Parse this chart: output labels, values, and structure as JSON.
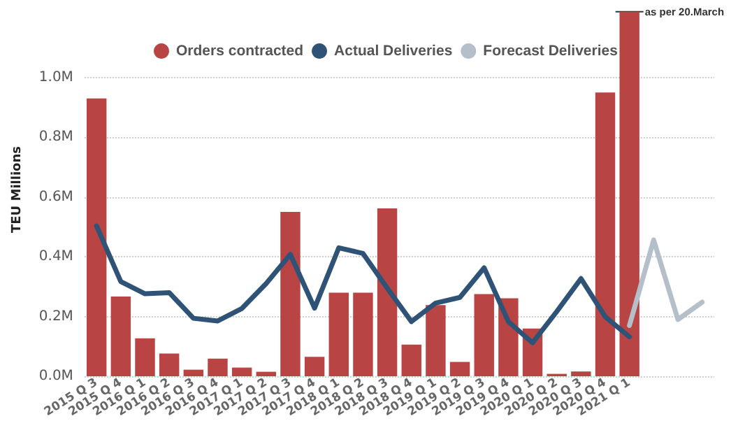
{
  "chart_data": {
    "type": "bar",
    "ylabel": "TEU Millions",
    "categories": [
      "2015 Q 3",
      "2015 Q 4",
      "2016 Q 1",
      "2016 Q 2",
      "2016 Q 3",
      "2016 Q 4",
      "2017 Q 1",
      "2017 Q 2",
      "2017 Q 3",
      "2017 Q 4",
      "2018 Q 1",
      "2018 Q 2",
      "2018 Q 3",
      "2018 Q 4",
      "2019 Q 1",
      "2019 Q 2",
      "2019 Q 3",
      "2019 Q 4",
      "2020 Q 1",
      "2020 Q 2",
      "2020 Q 3",
      "2020 Q 4",
      "2021 Q 1",
      null,
      null,
      null
    ],
    "series": [
      {
        "name": "Orders contracted",
        "color": "#b84444",
        "values": [
          0.93,
          0.267,
          0.127,
          0.076,
          0.022,
          0.059,
          0.029,
          0.015,
          0.55,
          0.065,
          0.28,
          0.28,
          0.562,
          0.106,
          0.238,
          0.048,
          0.275,
          0.261,
          0.16,
          0.008,
          0.016,
          0.95,
          1.22,
          null,
          null,
          null
        ]
      },
      {
        "name": "Actual Deliveries",
        "type": "line",
        "color": "#2f5377",
        "values": [
          0.503,
          0.317,
          0.276,
          0.28,
          0.194,
          0.185,
          0.227,
          0.31,
          0.408,
          0.228,
          0.43,
          0.411,
          0.295,
          0.183,
          0.245,
          0.264,
          0.363,
          0.183,
          0.112,
          0.217,
          0.327,
          0.199,
          0.132,
          null,
          null,
          null
        ]
      },
      {
        "name": "Forecast Deliveries",
        "type": "line",
        "color": "#b4bfca",
        "values": [
          null,
          null,
          null,
          null,
          null,
          null,
          null,
          null,
          null,
          null,
          null,
          null,
          null,
          null,
          null,
          null,
          null,
          null,
          null,
          null,
          null,
          null,
          0.17,
          0.456,
          0.19,
          0.248
        ]
      }
    ],
    "ylim": [
      0,
      1.25
    ],
    "yticks": [
      {
        "value": 0,
        "label": "0.0M"
      },
      {
        "value": 0.2,
        "label": "0.2M"
      },
      {
        "value": 0.4,
        "label": "0.4M"
      },
      {
        "value": 0.6,
        "label": "0.6M"
      },
      {
        "value": 0.8,
        "label": "0.8M"
      },
      {
        "value": 1.0,
        "label": "1.0M"
      }
    ],
    "annotations": [
      {
        "text": "as per 20.March",
        "x": "2021 Q 1",
        "y": 1.22
      }
    ],
    "grid": "y",
    "legend": "top",
    "marker": "none",
    "line_style": "solid"
  }
}
